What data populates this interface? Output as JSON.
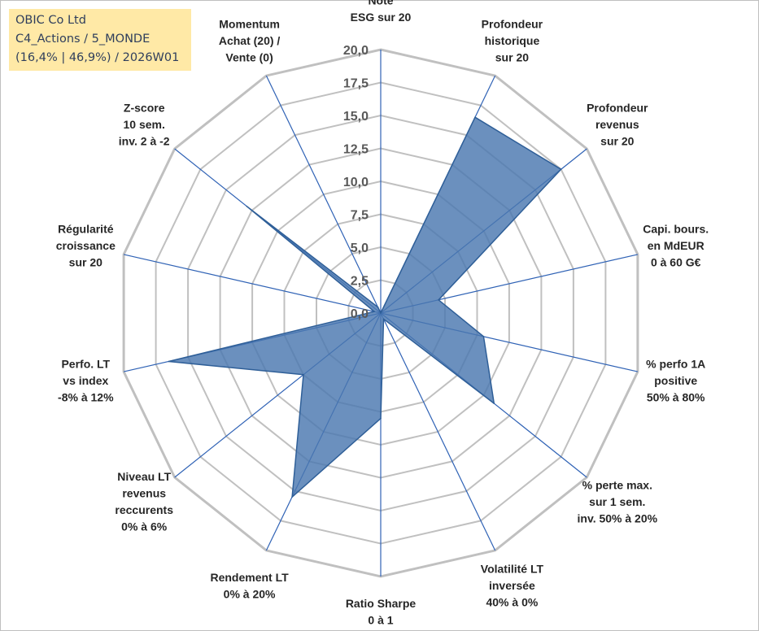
{
  "title_box": {
    "line1": "OBIC Co Ltd",
    "line2": "C4_Actions / 5_MONDE",
    "line3": "(16,4% | 46,9%) / 2026W01",
    "background": "#ffe9a6"
  },
  "chart_data": {
    "type": "radar",
    "title": "OBIC Co Ltd",
    "rmin": 0,
    "rmax": 20,
    "tick_step": 2.5,
    "tick_labels": [
      "0,0",
      "2,5",
      "5,0",
      "7,5",
      "10,0",
      "12,5",
      "15,0",
      "17,5",
      "20,0"
    ],
    "grid": true,
    "legend": "none",
    "colors": {
      "fill": "#4a78b0",
      "stroke": "#2f5f98",
      "spoke": "#2f62b5",
      "ring": "#c0c0c0"
    },
    "axes": [
      {
        "label": [
          "Note",
          "ESG sur 20"
        ],
        "value": 0.0
      },
      {
        "label": [
          "Profondeur",
          "historique",
          "sur 20"
        ],
        "value": 16.5
      },
      {
        "label": [
          "Profondeur",
          "revenus",
          "sur 20"
        ],
        "value": 17.5
      },
      {
        "label": [
          "Capi. bours.",
          "en MdEUR",
          "0 à 60 G€"
        ],
        "value": 4.5
      },
      {
        "label": [
          "% perfo 1A",
          "positive",
          "50% à 80%"
        ],
        "value": 8.0
      },
      {
        "label": [
          "% perte max.",
          "sur 1 sem.",
          "inv. 50% à 20%"
        ],
        "value": 11.0
      },
      {
        "label": [
          "Volatilité LT",
          "inversée",
          "40% à 0%"
        ],
        "value": 0.5
      },
      {
        "label": [
          "Ratio Sharpe",
          "0 à 1"
        ],
        "value": 8.0
      },
      {
        "label": [
          "Rendement LT",
          "0% à 20%"
        ],
        "value": 15.5
      },
      {
        "label": [
          "Niveau LT",
          "revenus",
          "reccurents",
          "0% à 6%"
        ],
        "value": 7.5
      },
      {
        "label": [
          "Perfo. LT",
          "vs index",
          "-8% à 12%"
        ],
        "value": 16.5
      },
      {
        "label": [
          "Régularité",
          "croissance",
          "sur 20"
        ],
        "value": 0.5
      },
      {
        "label": [
          "Z-score",
          "10 sem.",
          "inv. 2 à -2"
        ],
        "value": 13.0
      },
      {
        "label": [
          "Momentum",
          "Achat (20) /",
          "Vente (0)"
        ],
        "value": 0.5
      }
    ]
  }
}
